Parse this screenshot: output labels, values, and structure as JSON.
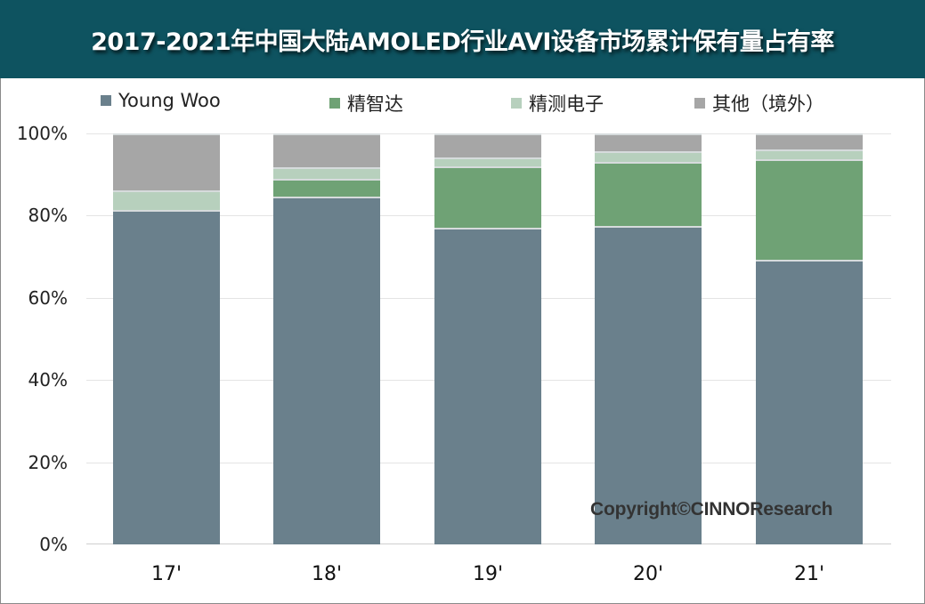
{
  "title": "2017-2021年中国大陆AMOLED行业AVI设备市场累计保有量占有率",
  "colors": {
    "title_bg": "#0e5360",
    "young_woo": "#6a808c",
    "jingzhida": "#6fa275",
    "jingce": "#b7d0bd",
    "other": "#a6a6a6"
  },
  "legend": [
    {
      "label": "Young Woo",
      "color": "#6a808c"
    },
    {
      "label": "精智达",
      "color": "#6fa275"
    },
    {
      "label": "精测电子",
      "color": "#b7d0bd"
    },
    {
      "label": "其他（境外）",
      "color": "#a6a6a6"
    }
  ],
  "y_ticks": [
    "0%",
    "20%",
    "40%",
    "60%",
    "80%",
    "100%"
  ],
  "watermark": "Copyright©CINNOResearch",
  "chart_data": {
    "type": "bar",
    "stacked": true,
    "title": "2017-2021年中国大陆AMOLED行业AVI设备市场累计保有量占有率",
    "xlabel": "",
    "ylabel": "",
    "ylim": [
      0,
      100
    ],
    "y_tick_labels": [
      "0%",
      "20%",
      "40%",
      "60%",
      "80%",
      "100%"
    ],
    "grid": true,
    "legend_position": "top",
    "categories": [
      "17'",
      "18'",
      "19'",
      "20'",
      "21'"
    ],
    "series": [
      {
        "name": "Young Woo",
        "color": "#6a808c",
        "values": [
          81.4,
          84.6,
          77.1,
          77.5,
          69.3
        ]
      },
      {
        "name": "精智达",
        "color": "#6fa275",
        "values": [
          0.0,
          4.4,
          14.9,
          15.6,
          24.4
        ]
      },
      {
        "name": "精测电子",
        "color": "#b7d0bd",
        "values": [
          4.7,
          2.8,
          2.2,
          2.6,
          2.4
        ]
      },
      {
        "name": "其他（境外）",
        "color": "#a6a6a6",
        "values": [
          13.9,
          8.2,
          5.8,
          4.3,
          3.9
        ]
      }
    ],
    "annotations": [
      "Copyright©CINNOResearch"
    ]
  }
}
